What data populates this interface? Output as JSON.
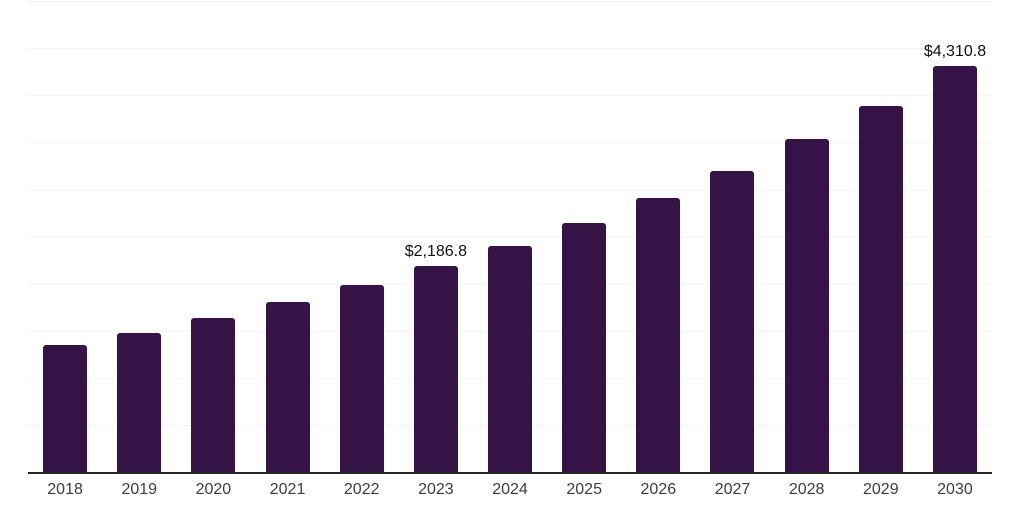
{
  "chart_data": {
    "type": "bar",
    "title": "",
    "xlabel": "",
    "ylabel": "",
    "categories": [
      "2018",
      "2019",
      "2020",
      "2021",
      "2022",
      "2023",
      "2024",
      "2025",
      "2026",
      "2027",
      "2028",
      "2029",
      "2030"
    ],
    "values": [
      1350,
      1480,
      1640,
      1800,
      1990,
      2186.8,
      2400,
      2640,
      2905,
      3200,
      3530,
      3890,
      4310.8
    ],
    "data_labels": [
      "",
      "",
      "",
      "",
      "",
      "$2,186.8",
      "",
      "",
      "",
      "",
      "",
      "",
      "$4,310.8"
    ],
    "ylim": [
      0,
      5000
    ],
    "grid": "horizontal",
    "gridline_interval": 500,
    "legend": "none",
    "colors": {
      "bar": "#351347",
      "axis_line": "#262626",
      "gridline": "#f2f2f2",
      "tick_label": "#3d3d3d",
      "data_label": "#111111",
      "background": "#ffffff"
    }
  }
}
